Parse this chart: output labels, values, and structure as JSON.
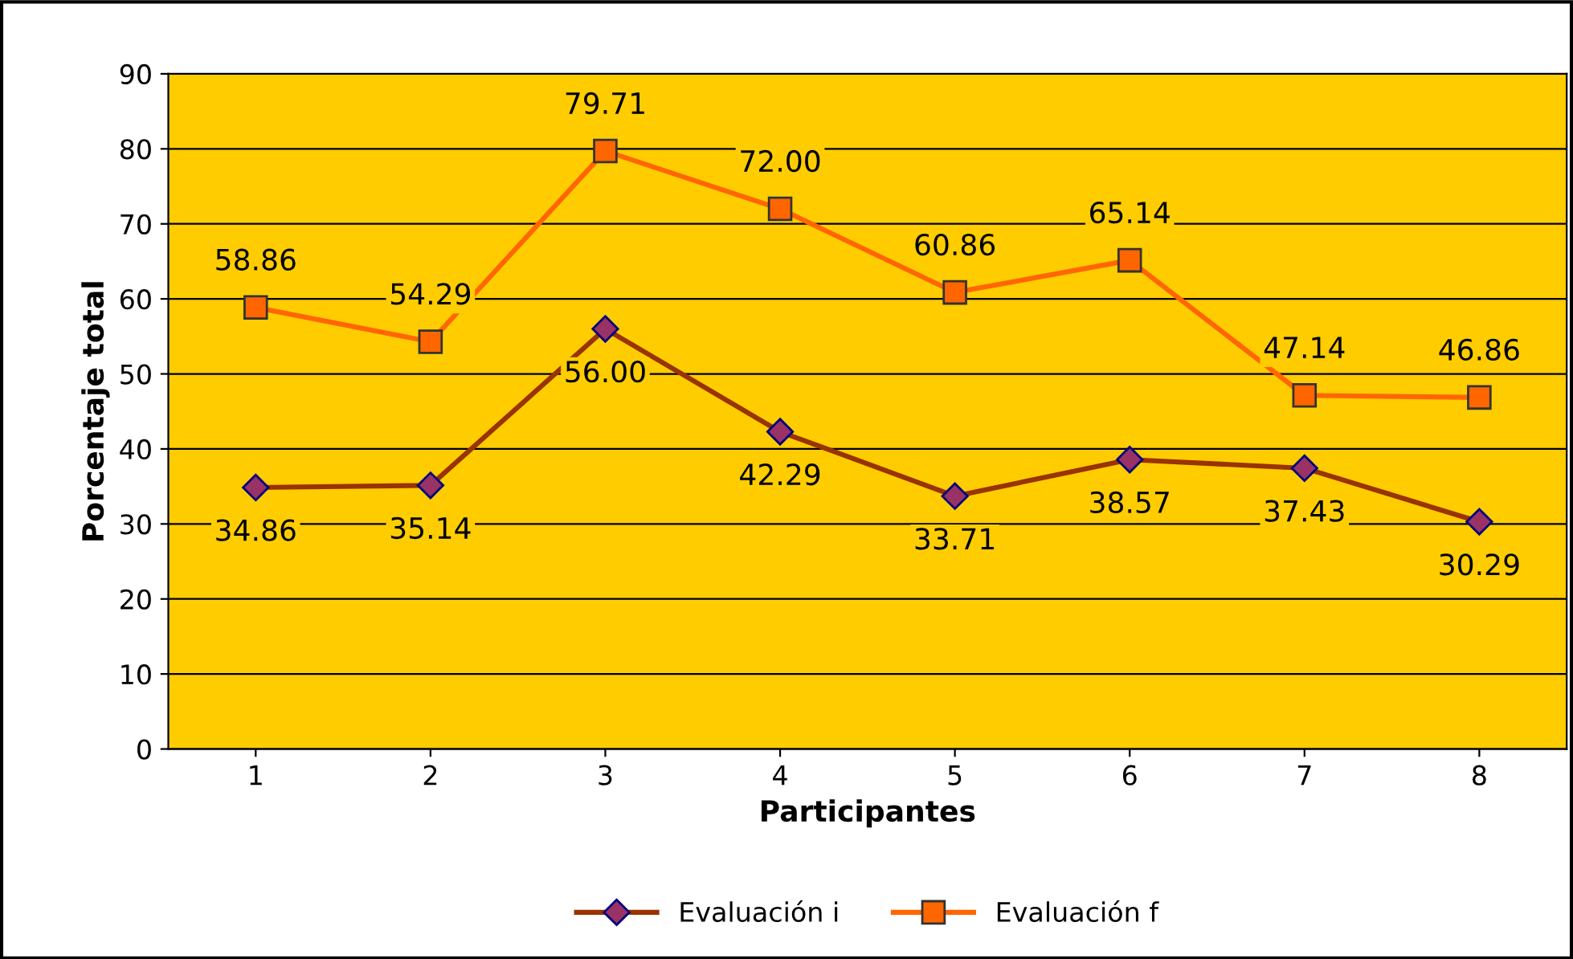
{
  "chart_data": {
    "type": "line",
    "xlabel": "Participantes",
    "ylabel": "Porcentaje total",
    "categories": [
      "1",
      "2",
      "3",
      "4",
      "5",
      "6",
      "7",
      "8"
    ],
    "series": [
      {
        "name": "Evaluación i",
        "color": "#993300",
        "marker": "diamond",
        "values": [
          34.86,
          35.14,
          56.0,
          42.29,
          33.71,
          38.57,
          37.43,
          30.29
        ],
        "value_labels": [
          "34.86",
          "35.14",
          "56.00",
          "42.29",
          "33.71",
          "38.57",
          "37.43",
          "30.29"
        ]
      },
      {
        "name": "Evaluación f",
        "color": "#FF6600",
        "marker": "square",
        "values": [
          58.86,
          54.29,
          79.71,
          72.0,
          60.86,
          65.14,
          47.14,
          46.86
        ],
        "value_labels": [
          "58.86",
          "54.29",
          "79.71",
          "72.00",
          "60.86",
          "65.14",
          "47.14",
          "46.86"
        ]
      }
    ],
    "ylim": [
      0,
      90
    ],
    "yticks": [
      0,
      10,
      20,
      30,
      40,
      50,
      60,
      70,
      80,
      90
    ],
    "grid": "y",
    "legend": "bottom",
    "line_style": "solid"
  }
}
